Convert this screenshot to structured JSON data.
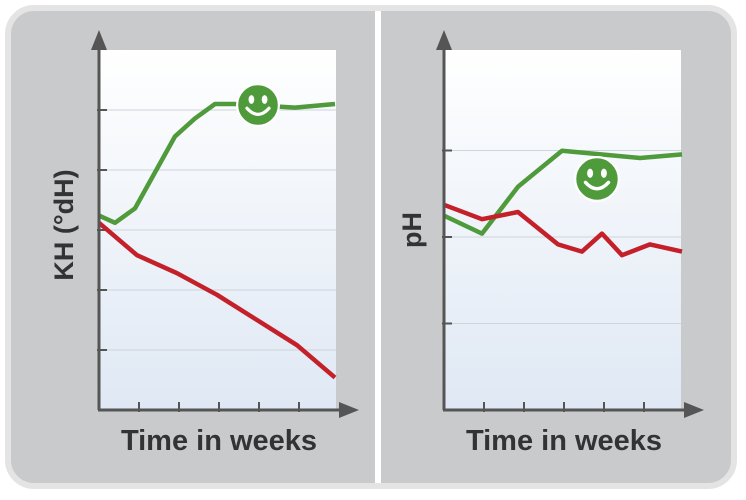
{
  "chart_data": [
    {
      "type": "line",
      "y_label": "KH  (°dH)",
      "x_label": "Time in weeks",
      "xlim": [
        0,
        6
      ],
      "ylim": [
        0,
        100
      ],
      "series": [
        {
          "color": "#4f9a3a",
          "x": [
            0,
            0.4,
            0.9,
            1.9,
            2.4,
            2.9,
            3.4,
            4.9,
            5.9
          ],
          "values": [
            54,
            52,
            56,
            76,
            81,
            85,
            85,
            84,
            85
          ]
        },
        {
          "color": "#c4202a",
          "x": [
            0,
            0.95,
            1.95,
            2.95,
            3.95,
            4.95,
            5.9
          ],
          "values": [
            52,
            43,
            38,
            32,
            25,
            18,
            9
          ]
        }
      ]
    },
    {
      "type": "line",
      "y_label": "pH",
      "x_label": "Time in weeks",
      "xlim": [
        0,
        6
      ],
      "ylim": [
        0,
        100
      ],
      "series": [
        {
          "color": "#4f9a3a",
          "x": [
            0,
            0.95,
            1.85,
            2.95,
            4.9,
            5.95
          ],
          "values": [
            54,
            49,
            62,
            72,
            70,
            71
          ]
        },
        {
          "color": "#c4202a",
          "x": [
            0,
            0.95,
            1.85,
            2.85,
            3.45,
            3.95,
            4.45,
            5.15,
            5.95
          ],
          "values": [
            57,
            53,
            55,
            46,
            44,
            49,
            43,
            46,
            44
          ]
        }
      ]
    }
  ]
}
